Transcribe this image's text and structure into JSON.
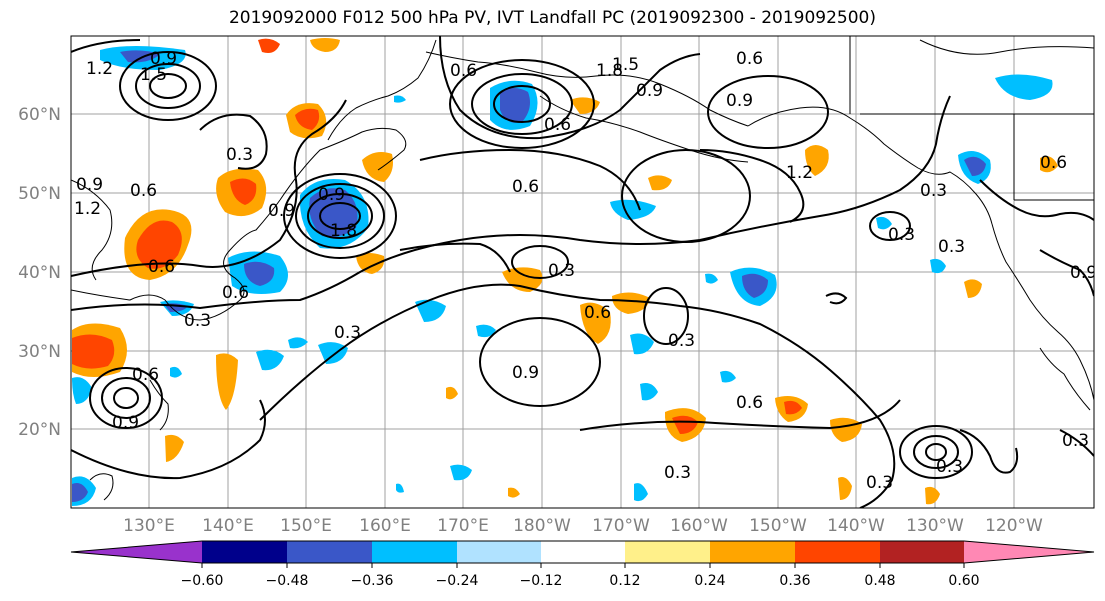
{
  "title": "2019092000 F012 500 hPa PV, IVT Landfall PC (2019092300 - 2019092500)",
  "lat_labels": [
    "60°N",
    "50°N",
    "40°N",
    "30°N",
    "20°N"
  ],
  "lon_labels": [
    "130°E",
    "140°E",
    "150°E",
    "160°E",
    "170°E",
    "180°W",
    "170°W",
    "160°W",
    "150°W",
    "140°W",
    "130°W",
    "120°W"
  ],
  "colorbar": {
    "colors": [
      "#9932cc",
      "#00008b",
      "#3a57c8",
      "#00bfff",
      "#b0e2ff",
      "#ffffff",
      "#fff08a",
      "#ffa500",
      "#ff4500",
      "#b22222",
      "#ff88b4"
    ],
    "ticks": [
      "−0.60",
      "−0.48",
      "−0.36",
      "−0.24",
      "−0.12",
      "0.12",
      "0.24",
      "0.36",
      "0.48",
      "0.60"
    ]
  },
  "contour_labels": [
    "0.9",
    "1.5",
    "1.2",
    "0.6",
    "0.3",
    "0.6",
    "0.9",
    "1.8",
    "0.9",
    "0.6",
    "0.9",
    "0.6",
    "1.2",
    "0.9",
    "0.6",
    "0.6",
    "0.3",
    "1.2",
    "0.9",
    "0.6",
    "0.3",
    "0.3",
    "0.6",
    "0.3",
    "0.9",
    "0.6",
    "0.3",
    "0.6",
    "0.3",
    "0.3",
    "0.9",
    "0.3",
    "1.8",
    "1.5",
    "0.3",
    "0.3",
    "0.9",
    "0.6",
    "0.3"
  ]
}
